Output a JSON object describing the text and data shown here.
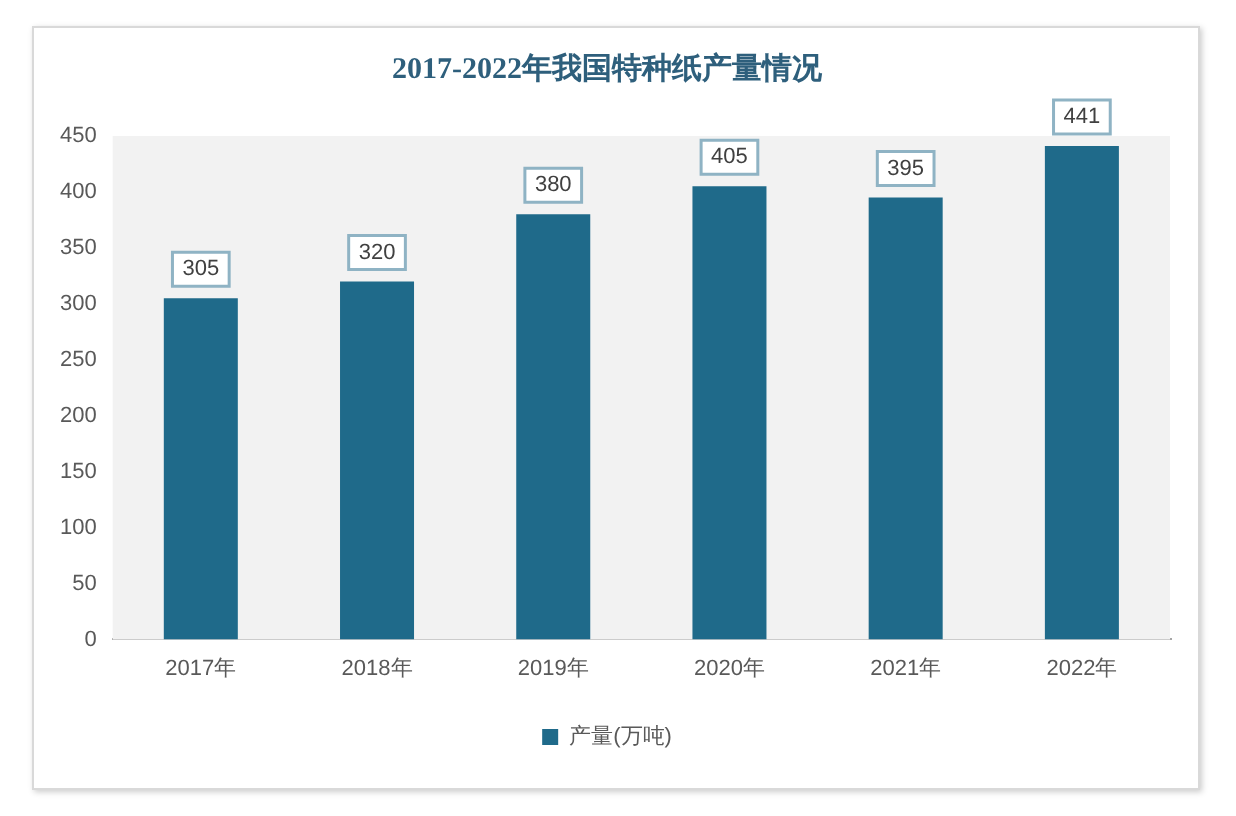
{
  "chart_data": {
    "type": "bar",
    "title": "2017-2022年我国特种纸产量情况",
    "categories": [
      "2017年",
      "2018年",
      "2019年",
      "2020年",
      "2021年",
      "2022年"
    ],
    "series": [
      {
        "name": "产量(万吨)",
        "color": "#1f6a8a",
        "values": [
          305,
          320,
          380,
          405,
          395,
          441
        ]
      }
    ],
    "ylim": [
      0,
      450
    ],
    "yticks": [
      0,
      50,
      100,
      150,
      200,
      250,
      300,
      350,
      400,
      450
    ],
    "legend": "bottom",
    "data_labels": true
  }
}
